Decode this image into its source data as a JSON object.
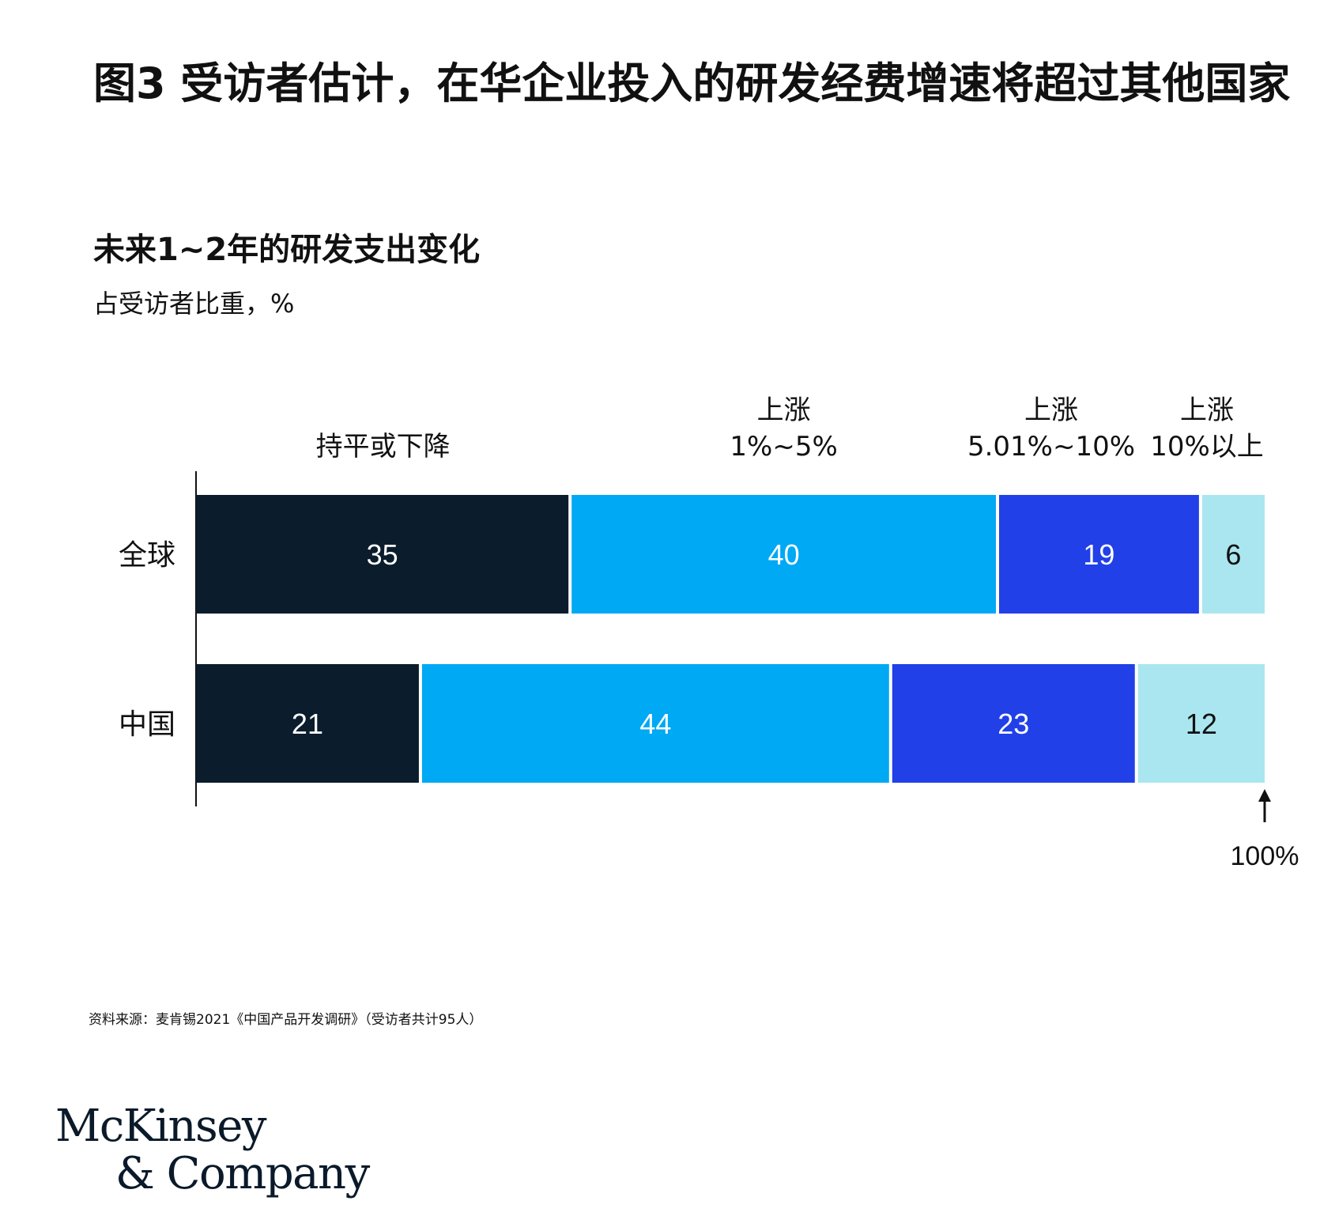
{
  "title": "图3 受访者估计，在华企业投入的研发经费增速将超过其他国家",
  "subtitle": "未来1~2年的研发支出变化",
  "unit_label": "占受访者比重，%",
  "source": "资料来源：麦肯锡2021《中国产品开发调研》（受访者共计95人）",
  "logo": {
    "line1": "McKinsey",
    "line2": "& Company"
  },
  "chart_data": {
    "type": "bar",
    "orientation": "horizontal",
    "stacked": true,
    "categories": [
      "全球",
      "中国"
    ],
    "series": [
      {
        "name": "持平或下降",
        "name_lines": [
          "持平或下降"
        ],
        "values": [
          35,
          21
        ],
        "color": "#0b1c2c",
        "label_color": "#ffffff"
      },
      {
        "name": "上涨 1%~5%",
        "name_lines": [
          "上涨",
          "1%~5%"
        ],
        "values": [
          40,
          44
        ],
        "color": "#00a9f4",
        "label_color": "#ffffff"
      },
      {
        "name": "上涨 5.01%~10%",
        "name_lines": [
          "上涨",
          "5.01%~10%"
        ],
        "values": [
          19,
          23
        ],
        "color": "#2140e8",
        "label_color": "#ffffff"
      },
      {
        "name": "上涨 10%以上",
        "name_lines": [
          "上涨",
          "10%以上"
        ],
        "values": [
          6,
          12
        ],
        "color": "#aae6f0",
        "label_color": "#111111"
      }
    ],
    "xlim": [
      0,
      100
    ],
    "total_label": "100%",
    "legend_position": "top"
  }
}
